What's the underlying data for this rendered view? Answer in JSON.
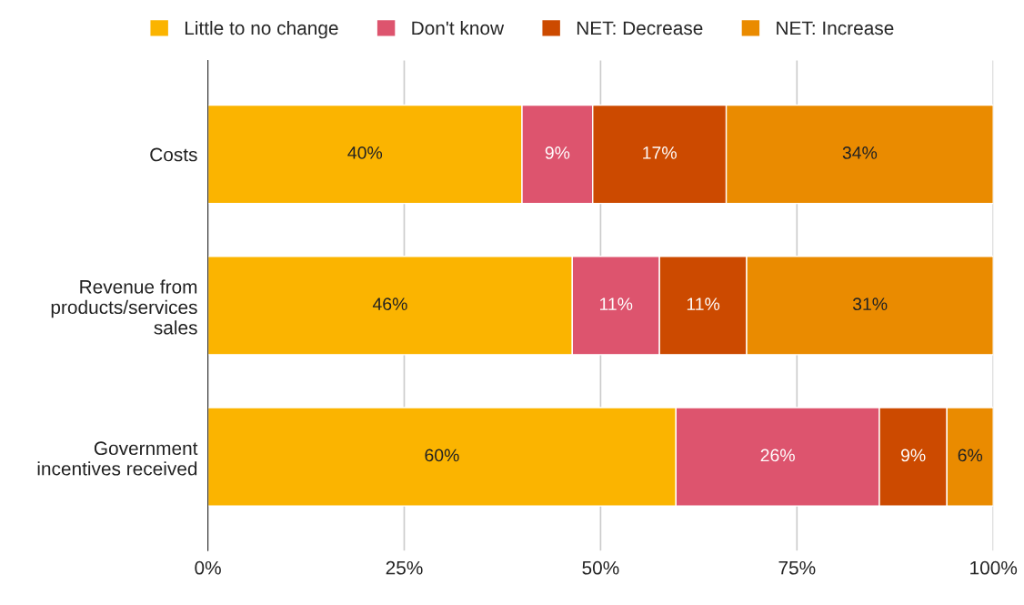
{
  "chart_data": {
    "type": "bar",
    "orientation": "horizontal",
    "stacked": true,
    "categories": [
      "Costs",
      "Revenue from\nproducts/services\nsales",
      "Government\nincentives received"
    ],
    "series": [
      {
        "name": "Little to no change",
        "color": "#fbb400",
        "values": [
          40,
          46.4,
          59.6
        ],
        "value_labels": [
          "40%",
          "46%",
          "60%"
        ]
      },
      {
        "name": "Don't know",
        "color": "#dd546e",
        "values": [
          9,
          11.1,
          25.9
        ],
        "value_labels": [
          "9%",
          "11%",
          "26%"
        ]
      },
      {
        "name": "NET: Decrease",
        "color": "#cc4a00",
        "values": [
          17,
          11.1,
          8.6
        ],
        "value_labels": [
          "17%",
          "11%",
          "9%"
        ]
      },
      {
        "name": "NET: Increase",
        "color": "#ea8b00",
        "values": [
          34,
          31.4,
          5.9
        ],
        "value_labels": [
          "34%",
          "31%",
          "6%"
        ]
      }
    ],
    "xlim": [
      0,
      100
    ],
    "xticks": [
      {
        "value": 0,
        "label": "0%"
      },
      {
        "value": 25,
        "label": "25%"
      },
      {
        "value": 50,
        "label": "50%"
      },
      {
        "value": 75,
        "label": "75%"
      },
      {
        "value": 100,
        "label": "100%"
      }
    ],
    "grid": "x",
    "legend": "top"
  }
}
